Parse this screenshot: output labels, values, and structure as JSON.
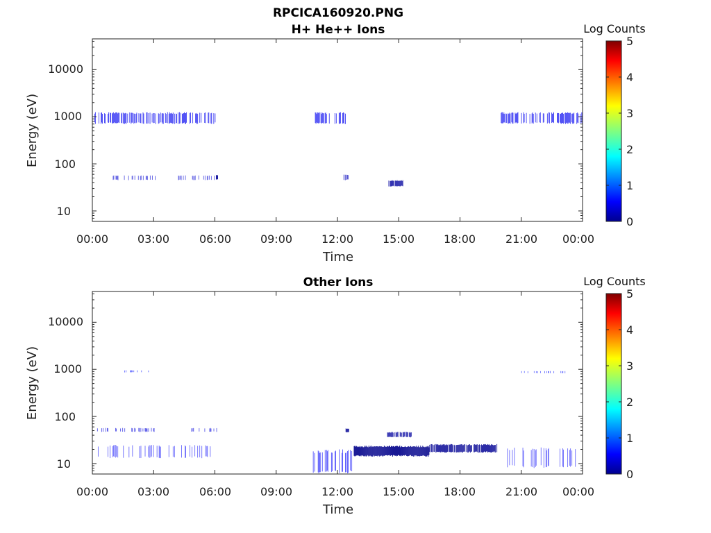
{
  "figure_title": "RPCICA160920.PNG",
  "chart_data": [
    {
      "type": "heatmap",
      "title": "H+ He++ Ions",
      "xlabel": "Time",
      "ylabel": "Energy (eV)",
      "x_ticks": [
        "00:00",
        "03:00",
        "06:00",
        "09:00",
        "12:00",
        "15:00",
        "18:00",
        "21:00",
        "00:00"
      ],
      "x_range_hours": [
        0,
        24
      ],
      "y_scale": "log",
      "y_range": [
        6,
        45000
      ],
      "y_ticks": [
        10,
        100,
        1000,
        10000
      ],
      "y_tick_labels": [
        "10",
        "100",
        "1000",
        "10000"
      ],
      "colorbar": {
        "label": "Log Counts",
        "range": [
          0,
          5
        ],
        "ticks": [
          "0",
          "1",
          "2",
          "3",
          "4",
          "5"
        ],
        "colormap": "jet"
      },
      "features": [
        {
          "t_start": 0.1,
          "t_end": 6.1,
          "e_low": 700,
          "e_high": 1250,
          "log_counts": 0.55,
          "density": 0.55
        },
        {
          "t_start": 10.9,
          "t_end": 12.4,
          "e_low": 700,
          "e_high": 1250,
          "log_counts": 0.55,
          "density": 0.55
        },
        {
          "t_start": 20.0,
          "t_end": 24.0,
          "e_low": 700,
          "e_high": 1250,
          "log_counts": 0.55,
          "density": 0.55
        },
        {
          "t_start": 0.9,
          "t_end": 3.1,
          "e_low": 45,
          "e_high": 57,
          "log_counts": 0.4,
          "density": 0.35
        },
        {
          "t_start": 4.2,
          "t_end": 6.1,
          "e_low": 45,
          "e_high": 57,
          "log_counts": 0.4,
          "density": 0.3
        },
        {
          "t_start": 6.05,
          "t_end": 6.15,
          "e_low": 46,
          "e_high": 58,
          "log_counts": 0.1,
          "density": 1.0
        },
        {
          "t_start": 14.5,
          "t_end": 15.2,
          "e_low": 33,
          "e_high": 45,
          "log_counts": 0.15,
          "density": 0.8
        },
        {
          "t_start": 12.3,
          "t_end": 12.6,
          "e_low": 45,
          "e_high": 60,
          "log_counts": 0.3,
          "density": 0.6
        }
      ]
    },
    {
      "type": "heatmap",
      "title": "Other Ions",
      "xlabel": "Time",
      "ylabel": "Energy (eV)",
      "x_ticks": [
        "00:00",
        "03:00",
        "06:00",
        "09:00",
        "12:00",
        "15:00",
        "18:00",
        "21:00",
        "00:00"
      ],
      "x_range_hours": [
        0,
        24
      ],
      "y_scale": "log",
      "y_range": [
        6,
        45000
      ],
      "y_ticks": [
        10,
        100,
        1000,
        10000
      ],
      "y_tick_labels": [
        "10",
        "100",
        "1000",
        "10000"
      ],
      "colorbar": {
        "label": "Log Counts",
        "range": [
          0,
          5
        ],
        "ticks": [
          "0",
          "1",
          "2",
          "3",
          "4",
          "5"
        ],
        "colormap": "jet"
      },
      "features": [
        {
          "t_start": 0.2,
          "t_end": 3.1,
          "e_low": 47,
          "e_high": 57,
          "log_counts": 0.45,
          "density": 0.4
        },
        {
          "t_start": 4.7,
          "t_end": 6.1,
          "e_low": 47,
          "e_high": 57,
          "log_counts": 0.45,
          "density": 0.35
        },
        {
          "t_start": 0.1,
          "t_end": 6.1,
          "e_low": 13,
          "e_high": 25,
          "log_counts": 0.6,
          "density": 0.25
        },
        {
          "t_start": 10.8,
          "t_end": 12.7,
          "e_low": 6,
          "e_high": 20,
          "log_counts": 0.6,
          "density": 0.4
        },
        {
          "t_start": 12.4,
          "t_end": 12.55,
          "e_low": 46,
          "e_high": 56,
          "log_counts": 0.1,
          "density": 1.0
        },
        {
          "t_start": 12.8,
          "t_end": 16.5,
          "e_low": 14,
          "e_high": 24,
          "log_counts": 0.05,
          "density": 1.0
        },
        {
          "t_start": 16.5,
          "t_end": 19.8,
          "e_low": 17,
          "e_high": 26,
          "log_counts": 0.1,
          "density": 0.85
        },
        {
          "t_start": 14.4,
          "t_end": 15.6,
          "e_low": 36,
          "e_high": 47,
          "log_counts": 0.15,
          "density": 0.75
        },
        {
          "t_start": 20.0,
          "t_end": 23.8,
          "e_low": 8,
          "e_high": 22,
          "log_counts": 0.6,
          "density": 0.25
        },
        {
          "t_start": 21.0,
          "t_end": 23.2,
          "e_low": 830,
          "e_high": 920,
          "log_counts": 0.7,
          "density": 0.3
        },
        {
          "t_start": 1.5,
          "t_end": 2.9,
          "e_low": 860,
          "e_high": 960,
          "log_counts": 0.7,
          "density": 0.3
        }
      ]
    }
  ]
}
